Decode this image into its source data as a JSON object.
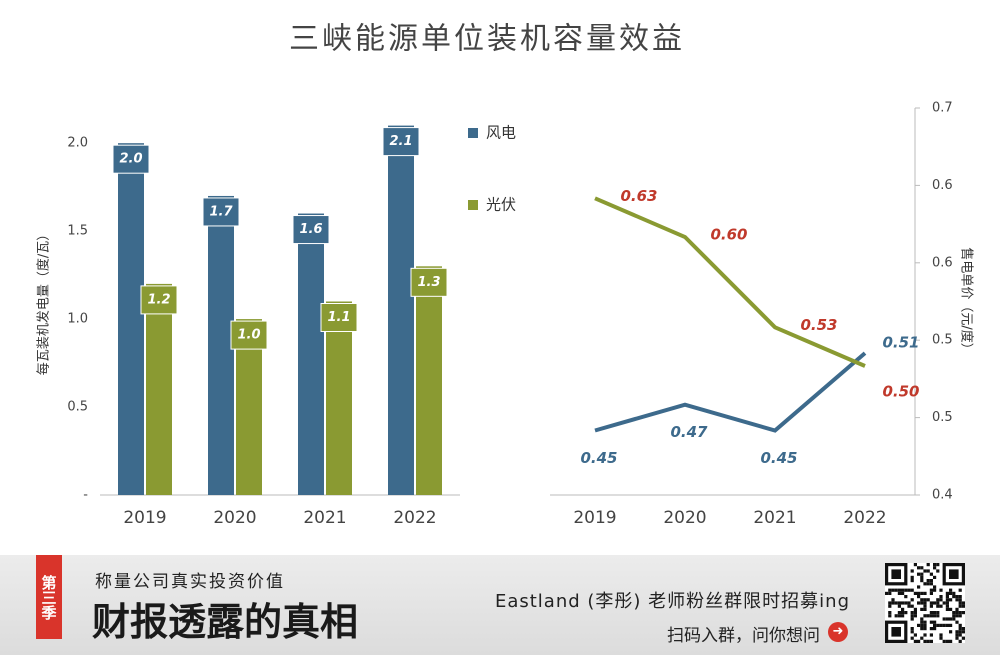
{
  "title": "三峡能源单位装机容量效益",
  "chart_data": [
    {
      "type": "bar",
      "categories": [
        "2019",
        "2020",
        "2021",
        "2022"
      ],
      "y_label": "每瓦装机发电量（度/瓦）",
      "ylim": [
        0,
        2.2
      ],
      "yticks": [
        {
          "value": 0,
          "label": "-"
        },
        0.5,
        {
          "value": 1,
          "label": "1.0"
        },
        1.5,
        {
          "value": 2,
          "label": "2.0"
        }
      ],
      "legend": "top-right",
      "series": [
        {
          "name": "风电",
          "color": "#3d6a8c",
          "values": [
            2,
            1.7,
            1.6,
            2.1
          ],
          "value_labels": [
            "2.0",
            "1.7",
            "1.6",
            "2.1"
          ]
        },
        {
          "name": "光伏",
          "color": "#8a9a32",
          "values": [
            1.2,
            1,
            1.1,
            1.3
          ],
          "value_labels": [
            "1.2",
            "1.0",
            "1.1",
            "1.3"
          ]
        }
      ]
    },
    {
      "type": "line",
      "categories": [
        "2019",
        "2020",
        "2021",
        "2022"
      ],
      "y2_label": "售电单价（元/度）",
      "y2lim": [
        0.4,
        0.7
      ],
      "y2ticks": [
        0.4,
        {
          "value": 0.46,
          "label": "0.5"
        },
        {
          "value": 0.52,
          "label": "0.5"
        },
        {
          "value": 0.58,
          "label": "0.6"
        },
        {
          "value": 0.64,
          "label": "0.6"
        },
        0.7
      ],
      "series": [
        {
          "color": "#3d6a8c",
          "label_color": "#3d6a8c",
          "axis": "y2",
          "values": [
            0.45,
            0.47,
            0.45,
            0.51
          ],
          "value_labels": [
            "0.45",
            "0.47",
            "0.45",
            "0.51"
          ]
        },
        {
          "color": "#8a9a32",
          "label_color": "#c0392b",
          "axis": "y2",
          "values": [
            0.63,
            0.6,
            0.53,
            0.5
          ],
          "value_labels": [
            "0.63",
            "0.60",
            "0.53",
            "0.50"
          ]
        }
      ]
    }
  ],
  "banner": {
    "badge": "第三季",
    "slogan": "称量公司真实投资价值",
    "headline": "财报透露的真相",
    "recruit": "Eastland (李彤) 老师粉丝群限时招募ing",
    "cta": "扫码入群，问你想问"
  }
}
